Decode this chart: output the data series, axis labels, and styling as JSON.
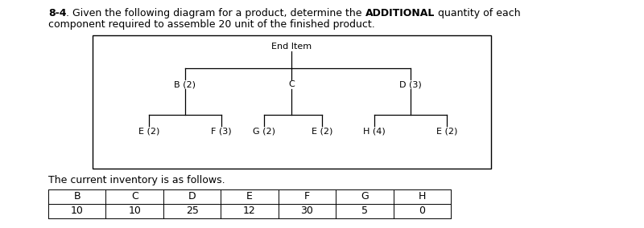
{
  "title_line1_parts": [
    {
      "text": "8-4",
      "bold": true
    },
    {
      "text": ". Given the following diagram for a product, determine the ",
      "bold": false
    },
    {
      "text": "ADDITIONAL",
      "bold": true
    },
    {
      "text": " quantity of each",
      "bold": false
    }
  ],
  "title_line2": "component required to assemble 20 unit of the finished product.",
  "end_item_label": "End Item",
  "node_labels": {
    "end": "End Item",
    "B": "B (2)",
    "C": "C",
    "D": "D (3)",
    "E1": "E (2)",
    "F": "F (3)",
    "G": "G (2)",
    "E2": "E (2)",
    "H": "H (4)",
    "E3": "E (2)"
  },
  "inventory_label": "The current inventory is as follows.",
  "inventory_headers": [
    "B",
    "C",
    "D",
    "E",
    "F",
    "G",
    "H"
  ],
  "inventory_values": [
    "10",
    "10",
    "25",
    "12",
    "30",
    "5",
    "0"
  ],
  "background_color": "#ffffff",
  "text_color": "#000000",
  "font_size_title": 9.0,
  "font_size_node": 8.0,
  "font_size_table": 9.0
}
